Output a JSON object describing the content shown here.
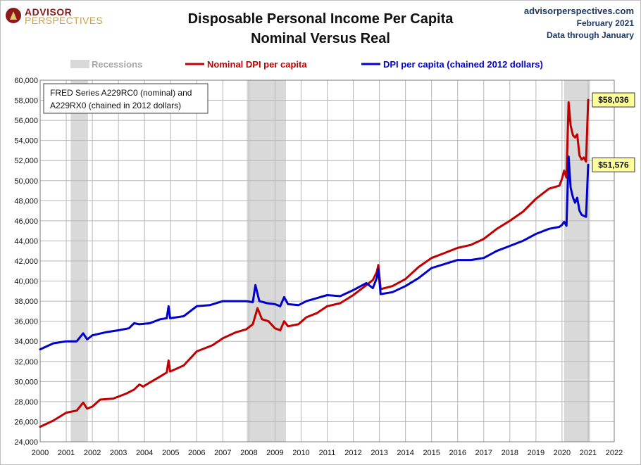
{
  "header": {
    "logo_line1": "ADVISOR",
    "logo_line2": "PERSPECTIVES",
    "site": "advisorperspectives.com",
    "date": "February 2021",
    "data_through": "Data through January"
  },
  "note": {
    "line1": "FRED Series A229RC0 (nominal) and",
    "line2": "A229RX0 (chained in 2012 dollars)"
  },
  "chart_data": {
    "type": "line",
    "title": "Disposable Personal Income Per Capita",
    "subtitle": "Nominal Versus Real",
    "xlabel": "",
    "ylabel": "",
    "xlim": [
      2000,
      2022
    ],
    "ylim": [
      24000,
      60000
    ],
    "grid": true,
    "legend_position": "top",
    "x_ticks": [
      "2000",
      "2001",
      "2002",
      "2003",
      "2004",
      "2005",
      "2006",
      "2007",
      "2008",
      "2009",
      "2010",
      "2011",
      "2012",
      "2013",
      "2014",
      "2015",
      "2016",
      "2017",
      "2018",
      "2019",
      "2020",
      "2021",
      "2022"
    ],
    "y_ticks": [
      "24,000",
      "26,000",
      "28,000",
      "30,000",
      "32,000",
      "34,000",
      "36,000",
      "38,000",
      "40,000",
      "42,000",
      "44,000",
      "46,000",
      "48,000",
      "50,000",
      "52,000",
      "54,000",
      "56,000",
      "58,000",
      "60,000"
    ],
    "recessions": {
      "name": "Recessions",
      "color": "#d9d9d9",
      "periods": [
        [
          2001.17,
          2001.83
        ],
        [
          2007.92,
          2009.42
        ],
        [
          2020.08,
          2021.08
        ]
      ]
    },
    "series": [
      {
        "name": "Nominal DPI per capita",
        "color": "#c00000",
        "points": [
          [
            2000.0,
            25500
          ],
          [
            2000.5,
            26100
          ],
          [
            2001.0,
            26900
          ],
          [
            2001.4,
            27100
          ],
          [
            2001.65,
            27900
          ],
          [
            2001.8,
            27300
          ],
          [
            2002.0,
            27500
          ],
          [
            2002.3,
            28200
          ],
          [
            2002.8,
            28300
          ],
          [
            2003.3,
            28800
          ],
          [
            2003.6,
            29200
          ],
          [
            2003.8,
            29700
          ],
          [
            2003.95,
            29500
          ],
          [
            2004.2,
            29900
          ],
          [
            2004.6,
            30500
          ],
          [
            2004.85,
            30900
          ],
          [
            2004.92,
            32100
          ],
          [
            2004.98,
            31000
          ],
          [
            2005.5,
            31600
          ],
          [
            2006.0,
            33000
          ],
          [
            2006.6,
            33600
          ],
          [
            2007.0,
            34300
          ],
          [
            2007.5,
            34900
          ],
          [
            2007.9,
            35200
          ],
          [
            2008.15,
            35700
          ],
          [
            2008.33,
            37300
          ],
          [
            2008.5,
            36200
          ],
          [
            2008.75,
            36000
          ],
          [
            2009.0,
            35300
          ],
          [
            2009.2,
            35100
          ],
          [
            2009.35,
            36000
          ],
          [
            2009.5,
            35500
          ],
          [
            2009.9,
            35700
          ],
          [
            2010.2,
            36400
          ],
          [
            2010.6,
            36800
          ],
          [
            2011.0,
            37500
          ],
          [
            2011.5,
            37800
          ],
          [
            2012.0,
            38600
          ],
          [
            2012.5,
            39600
          ],
          [
            2012.75,
            40100
          ],
          [
            2012.9,
            40900
          ],
          [
            2012.96,
            41600
          ],
          [
            2013.05,
            39200
          ],
          [
            2013.5,
            39500
          ],
          [
            2014.0,
            40200
          ],
          [
            2014.5,
            41400
          ],
          [
            2015.0,
            42300
          ],
          [
            2015.5,
            42800
          ],
          [
            2016.0,
            43300
          ],
          [
            2016.5,
            43600
          ],
          [
            2017.0,
            44200
          ],
          [
            2017.5,
            45200
          ],
          [
            2018.0,
            46000
          ],
          [
            2018.5,
            46900
          ],
          [
            2019.0,
            48200
          ],
          [
            2019.5,
            49200
          ],
          [
            2019.9,
            49500
          ],
          [
            2020.0,
            50200
          ],
          [
            2020.08,
            51000
          ],
          [
            2020.17,
            50300
          ],
          [
            2020.25,
            57800
          ],
          [
            2020.33,
            55500
          ],
          [
            2020.42,
            54500
          ],
          [
            2020.5,
            54300
          ],
          [
            2020.58,
            54600
          ],
          [
            2020.67,
            52500
          ],
          [
            2020.75,
            52100
          ],
          [
            2020.83,
            52300
          ],
          [
            2020.92,
            51900
          ],
          [
            2021.0,
            58036
          ]
        ]
      },
      {
        "name": "DPI per capita (chained 2012 dollars)",
        "color": "#0000cc",
        "points": [
          [
            2000.0,
            33200
          ],
          [
            2000.5,
            33800
          ],
          [
            2001.0,
            34000
          ],
          [
            2001.4,
            34000
          ],
          [
            2001.65,
            34800
          ],
          [
            2001.8,
            34200
          ],
          [
            2002.0,
            34600
          ],
          [
            2002.5,
            34900
          ],
          [
            2003.0,
            35100
          ],
          [
            2003.4,
            35300
          ],
          [
            2003.6,
            35800
          ],
          [
            2003.8,
            35700
          ],
          [
            2004.2,
            35800
          ],
          [
            2004.6,
            36200
          ],
          [
            2004.85,
            36300
          ],
          [
            2004.92,
            37500
          ],
          [
            2004.98,
            36300
          ],
          [
            2005.5,
            36500
          ],
          [
            2006.0,
            37500
          ],
          [
            2006.5,
            37600
          ],
          [
            2007.0,
            38000
          ],
          [
            2007.5,
            38000
          ],
          [
            2007.9,
            38000
          ],
          [
            2008.15,
            37900
          ],
          [
            2008.25,
            39600
          ],
          [
            2008.4,
            38000
          ],
          [
            2008.7,
            37800
          ],
          [
            2009.0,
            37700
          ],
          [
            2009.2,
            37500
          ],
          [
            2009.35,
            38400
          ],
          [
            2009.5,
            37700
          ],
          [
            2009.9,
            37600
          ],
          [
            2010.2,
            38000
          ],
          [
            2010.6,
            38300
          ],
          [
            2011.0,
            38600
          ],
          [
            2011.5,
            38500
          ],
          [
            2012.0,
            39100
          ],
          [
            2012.5,
            39800
          ],
          [
            2012.75,
            39300
          ],
          [
            2012.9,
            40300
          ],
          [
            2012.96,
            41200
          ],
          [
            2013.05,
            38700
          ],
          [
            2013.5,
            38900
          ],
          [
            2014.0,
            39500
          ],
          [
            2014.5,
            40300
          ],
          [
            2015.0,
            41300
          ],
          [
            2015.5,
            41700
          ],
          [
            2016.0,
            42100
          ],
          [
            2016.5,
            42100
          ],
          [
            2017.0,
            42300
          ],
          [
            2017.5,
            43000
          ],
          [
            2018.0,
            43500
          ],
          [
            2018.5,
            44000
          ],
          [
            2019.0,
            44700
          ],
          [
            2019.5,
            45200
          ],
          [
            2019.9,
            45400
          ],
          [
            2020.0,
            45600
          ],
          [
            2020.08,
            45900
          ],
          [
            2020.17,
            45500
          ],
          [
            2020.25,
            52400
          ],
          [
            2020.33,
            49300
          ],
          [
            2020.42,
            48300
          ],
          [
            2020.5,
            47800
          ],
          [
            2020.58,
            48300
          ],
          [
            2020.67,
            47000
          ],
          [
            2020.75,
            46600
          ],
          [
            2020.83,
            46500
          ],
          [
            2020.92,
            46400
          ],
          [
            2021.0,
            51576
          ]
        ]
      }
    ],
    "callouts": [
      {
        "label": "$58,036",
        "x": 2021.0,
        "y": 58036,
        "series": 0
      },
      {
        "label": "$51,576",
        "x": 2021.0,
        "y": 51576,
        "series": 1
      }
    ]
  }
}
